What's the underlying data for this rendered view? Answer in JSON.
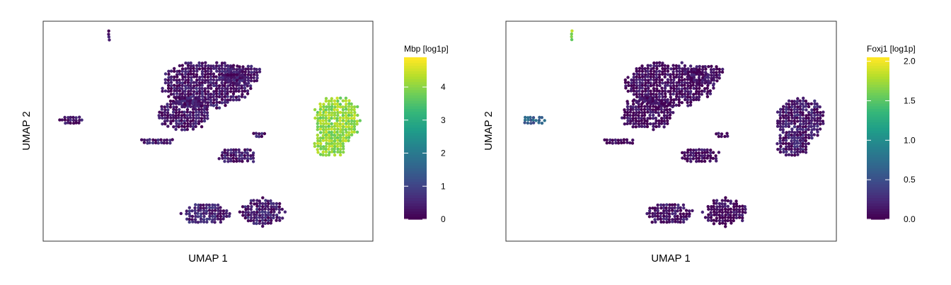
{
  "colormap": "viridis",
  "colors": {
    "frame": "#333333",
    "background": "#ffffff"
  },
  "chart_data": [
    {
      "type": "scatter",
      "subtype": "hexbin-embedding",
      "xlabel": "UMAP 1",
      "ylabel": "UMAP 2",
      "colorbar": {
        "title": "Mbp [log1p]",
        "range": [
          0,
          4.9
        ],
        "ticks": [
          0,
          1,
          2,
          3,
          4
        ],
        "tick_labels": [
          "0",
          "1",
          "2",
          "3",
          "4"
        ]
      },
      "clusters": [
        {
          "id": "top-center-large",
          "level": 0.3
        },
        {
          "id": "right-blob",
          "level": 4.1
        },
        {
          "id": "left-small",
          "level": 0.25
        },
        {
          "id": "top-left-tiny",
          "level": 0.3
        },
        {
          "id": "center-left-thin",
          "level": 0.45
        },
        {
          "id": "center-middle",
          "level": 0.3
        },
        {
          "id": "bottom-left",
          "level": 0.5
        },
        {
          "id": "bottom-right",
          "level": 0.4
        }
      ]
    },
    {
      "type": "scatter",
      "subtype": "hexbin-embedding",
      "xlabel": "UMAP 1",
      "ylabel": "UMAP 2",
      "colorbar": {
        "title": "Foxj1 [log1p]",
        "range": [
          0,
          2.05
        ],
        "ticks": [
          0,
          0.5,
          1,
          1.5,
          2
        ],
        "tick_labels": [
          "0.0",
          "0.5",
          "1.0",
          "1.5",
          "2.0"
        ]
      },
      "clusters": [
        {
          "id": "top-center-large",
          "level": 0.05
        },
        {
          "id": "right-blob",
          "level": 0.15
        },
        {
          "id": "left-small",
          "level": 0.6
        },
        {
          "id": "top-left-tiny",
          "level": 1.7
        },
        {
          "id": "center-left-thin",
          "level": 0.05
        },
        {
          "id": "center-middle",
          "level": 0.05
        },
        {
          "id": "bottom-left",
          "level": 0.1
        },
        {
          "id": "bottom-right",
          "level": 0.05
        }
      ]
    }
  ]
}
